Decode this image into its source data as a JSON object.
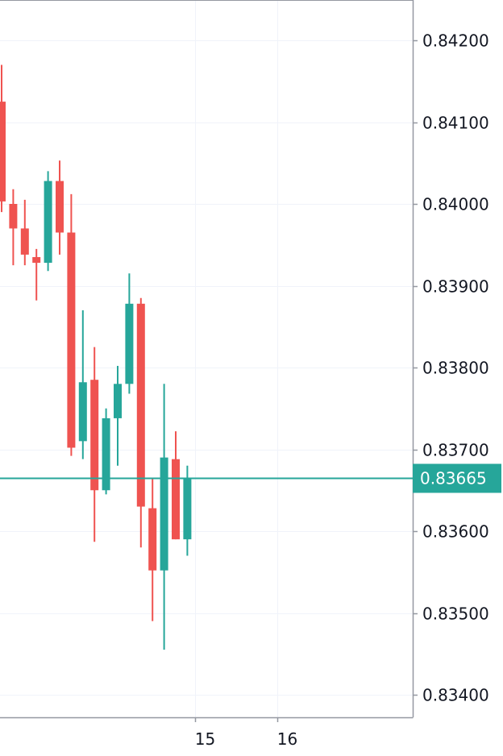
{
  "chart_data": {
    "type": "candlestick",
    "title": "",
    "xlabel": "",
    "ylabel": "",
    "ylim": [
      0.83385,
      0.84245
    ],
    "x_ticks": [
      "15",
      "16"
    ],
    "y_ticks": [
      {
        "value": 0.842,
        "label": "0.84200"
      },
      {
        "value": 0.841,
        "label": "0.84100"
      },
      {
        "value": 0.84,
        "label": "0.84000"
      },
      {
        "value": 0.839,
        "label": "0.83900"
      },
      {
        "value": 0.838,
        "label": "0.83800"
      },
      {
        "value": 0.837,
        "label": "0.83700"
      },
      {
        "value": 0.836,
        "label": "0.83600"
      },
      {
        "value": 0.835,
        "label": "0.83500"
      },
      {
        "value": 0.834,
        "label": "0.83400"
      }
    ],
    "grid": true,
    "current_price": {
      "value": 0.83665,
      "label": "0.83665"
    },
    "colors": {
      "up": "#26a69a",
      "down": "#ef5350",
      "grid": "#f0f3fa",
      "axis": "#9598a1",
      "text": "#131722",
      "price_line": "#26a69a",
      "price_tag": "#26a69a",
      "background": "#ffffff"
    },
    "candles": [
      {
        "open": 0.84125,
        "high": 0.8417,
        "low": 0.8399,
        "close": 0.84003
      },
      {
        "open": 0.84,
        "high": 0.84018,
        "low": 0.83925,
        "close": 0.8397
      },
      {
        "open": 0.8397,
        "high": 0.84005,
        "low": 0.83925,
        "close": 0.83938
      },
      {
        "open": 0.83935,
        "high": 0.83945,
        "low": 0.83882,
        "close": 0.83928
      },
      {
        "open": 0.83928,
        "high": 0.8404,
        "low": 0.83918,
        "close": 0.84028
      },
      {
        "open": 0.84028,
        "high": 0.84053,
        "low": 0.83938,
        "close": 0.83965
      },
      {
        "open": 0.83965,
        "high": 0.84012,
        "low": 0.83692,
        "close": 0.83702
      },
      {
        "open": 0.8371,
        "high": 0.8387,
        "low": 0.83688,
        "close": 0.83782
      },
      {
        "open": 0.83785,
        "high": 0.83825,
        "low": 0.83587,
        "close": 0.8365
      },
      {
        "open": 0.8365,
        "high": 0.8375,
        "low": 0.83645,
        "close": 0.83738
      },
      {
        "open": 0.83738,
        "high": 0.83802,
        "low": 0.8368,
        "close": 0.8378
      },
      {
        "open": 0.8378,
        "high": 0.83915,
        "low": 0.83768,
        "close": 0.83878
      },
      {
        "open": 0.83878,
        "high": 0.83885,
        "low": 0.8358,
        "close": 0.8363
      },
      {
        "open": 0.83628,
        "high": 0.83665,
        "low": 0.8349,
        "close": 0.83552
      },
      {
        "open": 0.83552,
        "high": 0.8378,
        "low": 0.83455,
        "close": 0.8369
      },
      {
        "open": 0.83688,
        "high": 0.83722,
        "low": 0.8359,
        "close": 0.8359
      },
      {
        "open": 0.8359,
        "high": 0.8368,
        "low": 0.8357,
        "close": 0.83665
      }
    ]
  }
}
